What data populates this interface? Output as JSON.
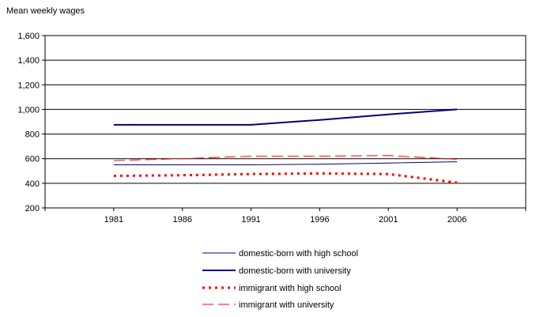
{
  "chart_data": {
    "type": "line",
    "title": "",
    "ylabel": "Mean weekly wages",
    "xlabel": "",
    "ylim": [
      200,
      1600
    ],
    "yticks": [
      200,
      400,
      600,
      800,
      1000,
      1200,
      1400,
      1600
    ],
    "ytick_labels": [
      "200",
      "400",
      "600",
      "800",
      "1,000",
      "1,200",
      "1,400",
      "1,600"
    ],
    "xlim": [
      1976,
      2011
    ],
    "xticks": [
      1981,
      1986,
      1991,
      1996,
      2001,
      2006
    ],
    "xtick_labels": [
      "1981",
      "1986",
      "1991",
      "1996",
      "2001",
      "2006"
    ],
    "grid": "horizontal",
    "legend_position": "bottom",
    "series": [
      {
        "name": "domestic-born with high school",
        "color": "#000080",
        "style": "solid",
        "width": 1,
        "x": [
          1981,
          1986,
          1991,
          1996,
          2001,
          2006
        ],
        "y": [
          550,
          550,
          550,
          555,
          565,
          575
        ]
      },
      {
        "name": "domestic-born with university",
        "color": "#000080",
        "style": "solid",
        "width": 2,
        "x": [
          1981,
          1986,
          1991,
          1996,
          2001,
          2006
        ],
        "y": [
          875,
          875,
          875,
          915,
          960,
          1000
        ]
      },
      {
        "name": "immigrant with high school",
        "color": "#ff0000",
        "style": "dotted",
        "width": 3,
        "x": [
          1981,
          1986,
          1991,
          1996,
          2001,
          2006
        ],
        "y": [
          460,
          465,
          475,
          480,
          475,
          405
        ]
      },
      {
        "name": "immigrant with university",
        "color": "#ff0000",
        "style": "dashed",
        "width": 1,
        "x": [
          1981,
          1986,
          1991,
          1996,
          2001,
          2006
        ],
        "y": [
          585,
          600,
          620,
          620,
          625,
          595
        ]
      }
    ]
  }
}
